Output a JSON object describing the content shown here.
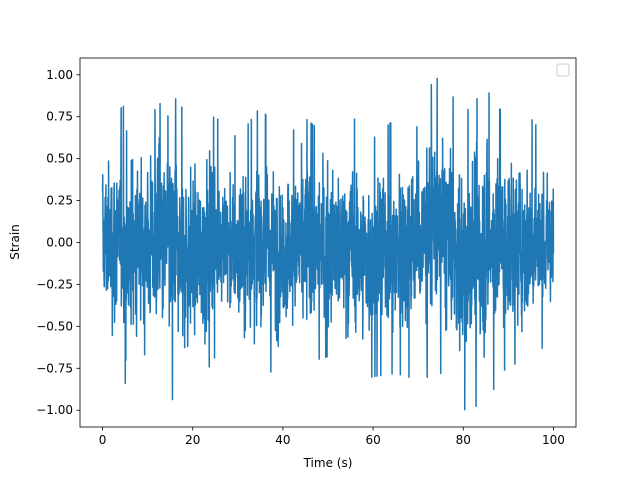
{
  "chart_data": {
    "type": "line",
    "title": "",
    "xlabel": "Time (s)",
    "ylabel": "Strain",
    "xlim": [
      -5,
      105
    ],
    "ylim": [
      -1.1,
      1.1
    ],
    "xticks": [
      0,
      20,
      40,
      60,
      80,
      100
    ],
    "xtick_labels": [
      "0",
      "20",
      "40",
      "60",
      "80",
      "100"
    ],
    "yticks": [
      -1.0,
      -0.75,
      -0.5,
      -0.25,
      0.0,
      0.25,
      0.5,
      0.75,
      1.0
    ],
    "ytick_labels": [
      "−1.00",
      "−0.75",
      "−0.50",
      "−0.25",
      "0.00",
      "0.25",
      "0.50",
      "0.75",
      "1.00"
    ],
    "grid": false,
    "legend": {
      "placement": "top-right",
      "entries": []
    },
    "series": [
      {
        "color": "#1f77b4",
        "x_range": [
          0,
          100
        ],
        "y_range": [
          -1.0,
          1.0
        ],
        "envelope": {
          "x": [
            0,
            5,
            10,
            15,
            20,
            25,
            30,
            35,
            40,
            45,
            50,
            55,
            60,
            65,
            70,
            75,
            80,
            85,
            90,
            95,
            100
          ],
          "upper": [
            0.72,
            0.82,
            0.74,
            0.9,
            0.72,
            0.75,
            0.62,
            0.81,
            0.61,
            0.74,
            0.63,
            0.76,
            0.62,
            0.74,
            0.86,
            1.0,
            0.76,
            0.92,
            0.72,
            0.74,
            0.56
          ],
          "lower": [
            -0.66,
            -0.84,
            -0.76,
            -0.94,
            -0.91,
            -0.68,
            -0.75,
            -0.8,
            -0.74,
            -0.72,
            -0.68,
            -0.84,
            -0.8,
            -0.78,
            -0.82,
            -0.78,
            -1.0,
            -0.96,
            -0.72,
            -0.74,
            -0.6
          ]
        }
      }
    ]
  }
}
